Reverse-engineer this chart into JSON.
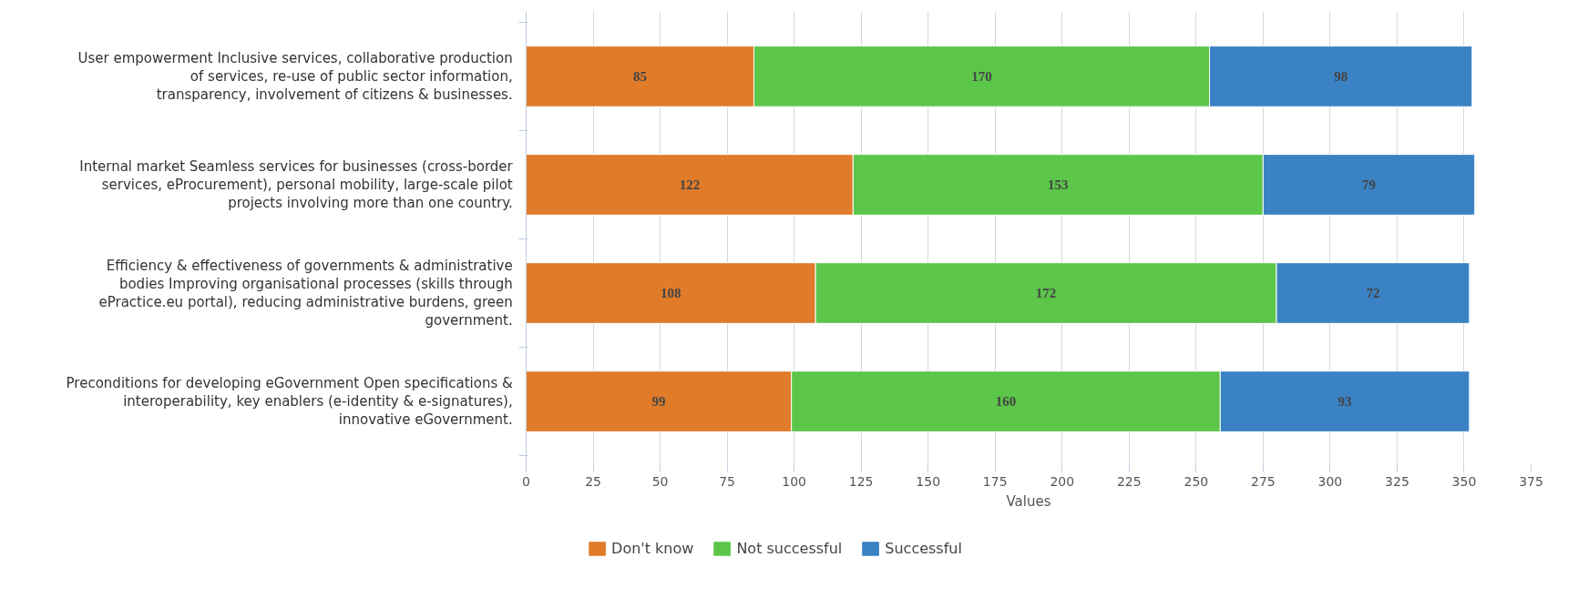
{
  "chart_data": {
    "type": "bar",
    "orientation": "horizontal",
    "stacked": true,
    "xlabel": "Values",
    "categories": [
      "User empowerment Inclusive services, collaborative production of services, re-use of public sector information, transparency, involvement of citizens & businesses.",
      "Internal market Seamless services for businesses (cross-border services, eProcurement), personal mobility, large-scale pilot projects involving more than one country.",
      "Efficiency & effectiveness of governments & administrative bodies Improving organisational processes (skills through ePractice.eu portal), reducing administrative burdens, green government.",
      "Preconditions for developing eGovernment Open specifications & interoperability, key enablers (e-identity & e-signatures), innovative eGovernment."
    ],
    "series": [
      {
        "name": "Don't know",
        "color": "#e07b2a",
        "values": [
          85,
          122,
          108,
          99
        ]
      },
      {
        "name": "Not successful",
        "color": "#5cc64a",
        "values": [
          170,
          153,
          172,
          160
        ]
      },
      {
        "name": "Successful",
        "color": "#3b82c4",
        "values": [
          98,
          79,
          72,
          93
        ]
      }
    ],
    "xlim": [
      0,
      375
    ],
    "xticks": [
      0,
      25,
      50,
      75,
      100,
      125,
      150,
      175,
      200,
      225,
      250,
      275,
      300,
      325,
      350,
      375
    ],
    "grid": "x",
    "legend": "bottom",
    "data_labels": true
  }
}
